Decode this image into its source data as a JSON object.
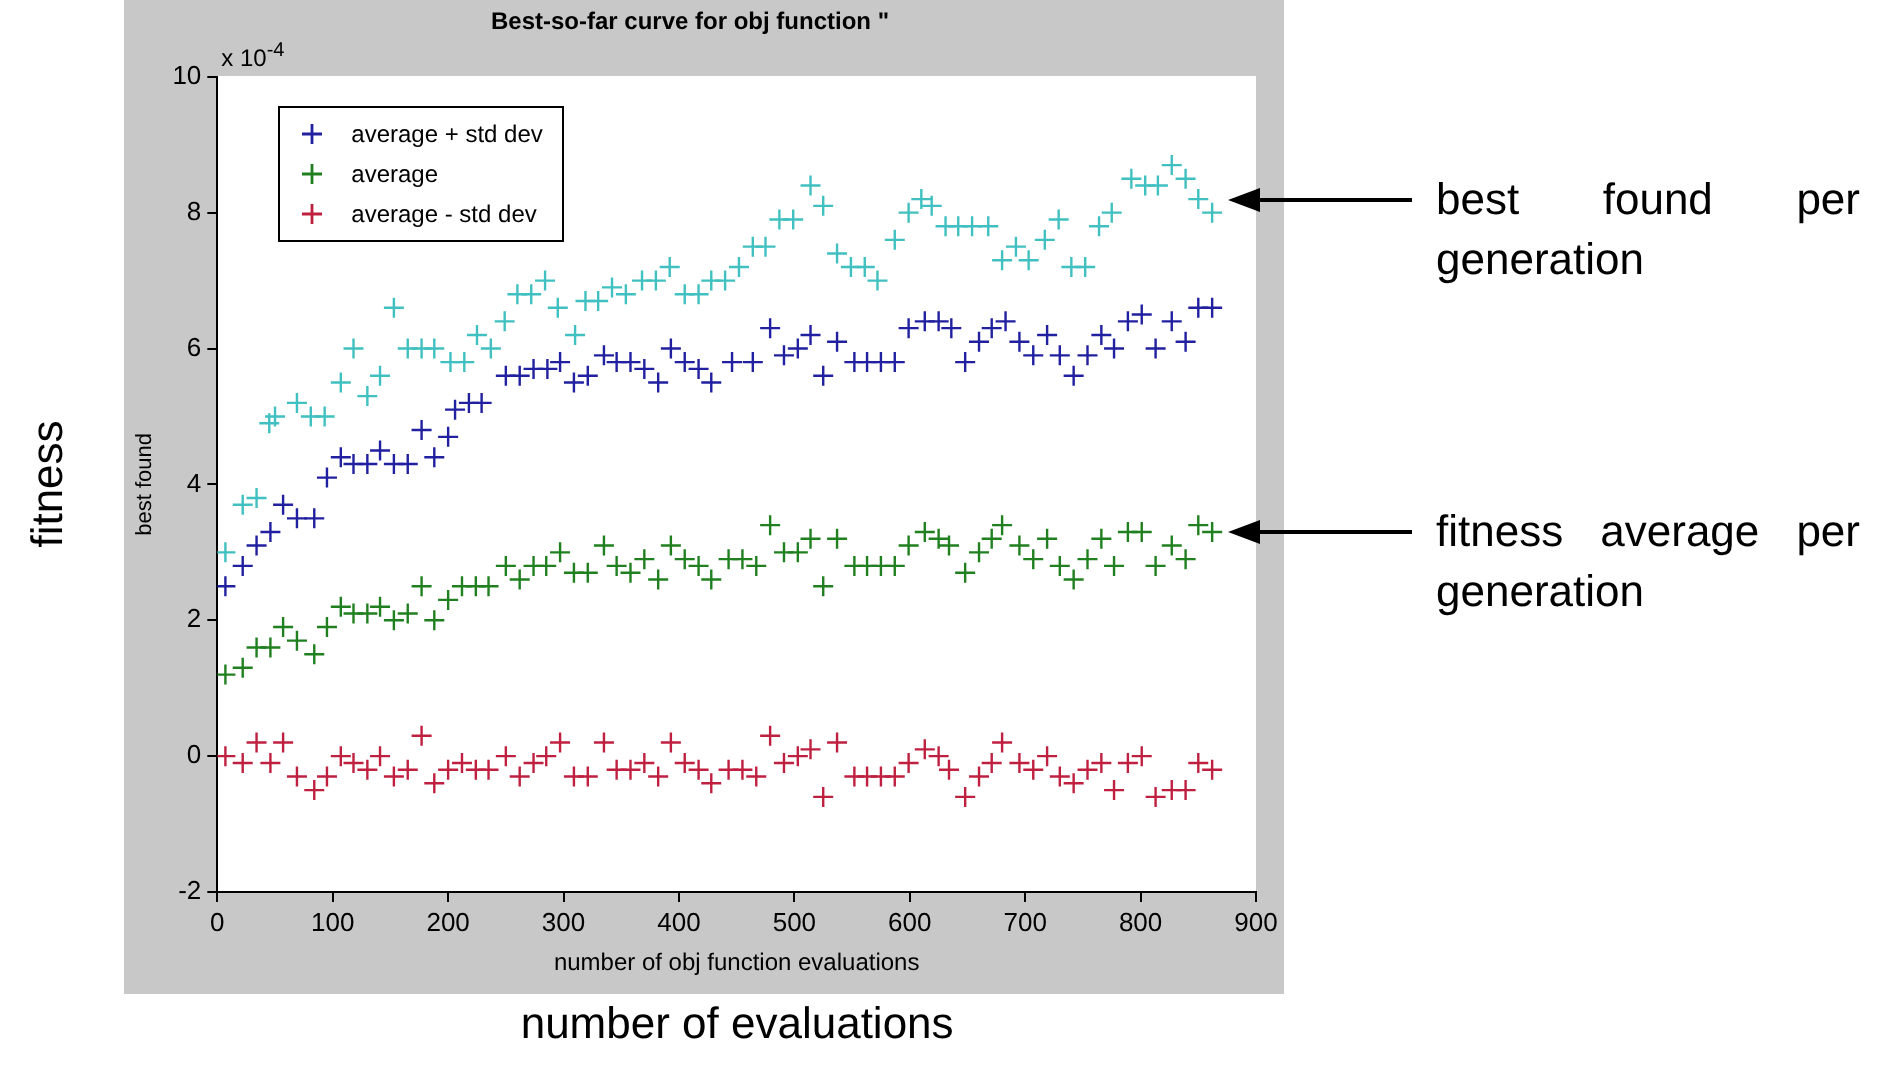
{
  "chart_data": {
    "type": "scatter",
    "title": "Best-so-far curve for obj function \"",
    "xlabel": "number of obj function evaluations",
    "ylabel": "best found",
    "xlim": [
      0,
      900
    ],
    "xticks": [
      0,
      100,
      200,
      300,
      400,
      500,
      600,
      700,
      800,
      900
    ],
    "ylim": [
      -2,
      10
    ],
    "yticks": [
      -2,
      0,
      2,
      4,
      6,
      8,
      10
    ],
    "grid": false,
    "legend": "top left",
    "marker": "cross",
    "annotations": [
      "x 10$^{-4}$",
      "fitness",
      "number of evaluations",
      "best found per generation",
      "fitness average per generation"
    ],
    "series": [
      {
        "color": "#40c0c0",
        "x": [
          7,
          22,
          34,
          45,
          50,
          69,
          81,
          93,
          107,
          118,
          130,
          141,
          153,
          165,
          177,
          188,
          202,
          214,
          225,
          237,
          249,
          260,
          272,
          284,
          295,
          310,
          319,
          330,
          342,
          354,
          368,
          380,
          392,
          405,
          417,
          428,
          440,
          452,
          464,
          475,
          487,
          499,
          514,
          525,
          537,
          549,
          561,
          572,
          587,
          599,
          610,
          619,
          631,
          642,
          654,
          668,
          680,
          692,
          703,
          717,
          729,
          740,
          752,
          764,
          775,
          792,
          804,
          815,
          827,
          839,
          850,
          862
        ],
        "values": [
          3.0,
          3.7,
          3.8,
          4.9,
          5.0,
          5.2,
          5.0,
          5.0,
          5.5,
          6.0,
          5.3,
          5.6,
          6.6,
          6.0,
          6.0,
          6.0,
          5.8,
          5.8,
          6.2,
          6.0,
          6.4,
          6.8,
          6.8,
          7.0,
          6.6,
          6.2,
          6.7,
          6.7,
          6.9,
          6.8,
          7.0,
          7.0,
          7.2,
          6.8,
          6.8,
          7.0,
          7.0,
          7.2,
          7.5,
          7.5,
          7.9,
          7.9,
          8.4,
          8.1,
          7.4,
          7.2,
          7.2,
          7.0,
          7.6,
          8.0,
          8.2,
          8.1,
          7.8,
          7.8,
          7.8,
          7.8,
          7.3,
          7.5,
          7.3,
          7.6,
          7.9,
          7.2,
          7.2,
          7.8,
          8.0,
          8.5,
          8.4,
          8.4,
          8.7,
          8.5,
          8.2,
          8.0
        ]
      },
      {
        "name": "average + std dev",
        "color": "#2020a0",
        "x": [
          7,
          22,
          34,
          46,
          57,
          69,
          84,
          95,
          107,
          118,
          130,
          141,
          153,
          165,
          177,
          188,
          200,
          206,
          218,
          229,
          250,
          262,
          274,
          286,
          297,
          309,
          321,
          335,
          346,
          358,
          370,
          382,
          393,
          405,
          417,
          428,
          446,
          464,
          479,
          491,
          503,
          514,
          525,
          537,
          552,
          563,
          575,
          587,
          599,
          613,
          625,
          636,
          648,
          660,
          671,
          683,
          695,
          707,
          719,
          730,
          742,
          754,
          766,
          777,
          789,
          801,
          813,
          827,
          839,
          850,
          862
        ],
        "values": [
          2.5,
          2.8,
          3.1,
          3.3,
          3.7,
          3.5,
          3.5,
          4.1,
          4.4,
          4.3,
          4.3,
          4.5,
          4.3,
          4.3,
          4.8,
          4.4,
          4.7,
          5.1,
          5.2,
          5.2,
          5.6,
          5.6,
          5.7,
          5.7,
          5.8,
          5.5,
          5.6,
          5.9,
          5.8,
          5.8,
          5.7,
          5.5,
          6.0,
          5.8,
          5.7,
          5.5,
          5.8,
          5.8,
          6.3,
          5.9,
          6.0,
          6.2,
          5.6,
          6.1,
          5.8,
          5.8,
          5.8,
          5.8,
          6.3,
          6.4,
          6.4,
          6.3,
          5.8,
          6.1,
          6.3,
          6.4,
          6.1,
          5.9,
          6.2,
          5.9,
          5.6,
          5.9,
          6.2,
          6.0,
          6.4,
          6.5,
          6.0,
          6.4,
          6.1,
          6.6,
          6.6
        ]
      },
      {
        "name": "average",
        "color": "#208020",
        "x": [
          7,
          22,
          34,
          46,
          57,
          69,
          84,
          95,
          107,
          118,
          130,
          141,
          153,
          165,
          177,
          188,
          200,
          212,
          224,
          235,
          250,
          262,
          274,
          285,
          297,
          309,
          321,
          335,
          346,
          358,
          370,
          382,
          393,
          405,
          417,
          428,
          443,
          455,
          467,
          479,
          491,
          503,
          514,
          525,
          537,
          552,
          563,
          575,
          587,
          599,
          613,
          625,
          634,
          648,
          660,
          671,
          680,
          695,
          707,
          719,
          730,
          742,
          754,
          766,
          777,
          789,
          801,
          813,
          827,
          839,
          850,
          862
        ],
        "values": [
          1.2,
          1.3,
          1.6,
          1.6,
          1.9,
          1.7,
          1.5,
          1.9,
          2.2,
          2.1,
          2.1,
          2.2,
          2.0,
          2.1,
          2.5,
          2.0,
          2.3,
          2.5,
          2.5,
          2.5,
          2.8,
          2.6,
          2.8,
          2.8,
          3.0,
          2.7,
          2.7,
          3.1,
          2.8,
          2.7,
          2.9,
          2.6,
          3.1,
          2.9,
          2.8,
          2.6,
          2.9,
          2.9,
          2.8,
          3.4,
          3.0,
          3.0,
          3.2,
          2.5,
          3.2,
          2.8,
          2.8,
          2.8,
          2.8,
          3.1,
          3.3,
          3.2,
          3.1,
          2.7,
          3.0,
          3.2,
          3.4,
          3.1,
          2.9,
          3.2,
          2.8,
          2.6,
          2.9,
          3.2,
          2.8,
          3.3,
          3.3,
          2.8,
          3.1,
          2.9,
          3.4,
          3.3
        ]
      },
      {
        "name": "average - std dev",
        "color": "#c02040",
        "x": [
          7,
          22,
          34,
          46,
          57,
          69,
          84,
          95,
          107,
          118,
          130,
          141,
          153,
          165,
          177,
          188,
          200,
          212,
          224,
          235,
          250,
          262,
          274,
          285,
          297,
          309,
          321,
          335,
          346,
          358,
          370,
          382,
          393,
          405,
          417,
          428,
          443,
          455,
          467,
          479,
          491,
          503,
          514,
          525,
          537,
          552,
          563,
          575,
          587,
          599,
          613,
          625,
          634,
          648,
          660,
          671,
          680,
          695,
          707,
          719,
          730,
          742,
          754,
          766,
          777,
          789,
          801,
          813,
          827,
          839,
          850,
          862
        ],
        "values": [
          0.0,
          -0.1,
          0.2,
          -0.1,
          0.2,
          -0.3,
          -0.5,
          -0.3,
          0.0,
          -0.1,
          -0.2,
          0.0,
          -0.3,
          -0.2,
          0.3,
          -0.4,
          -0.2,
          -0.1,
          -0.2,
          -0.2,
          0.0,
          -0.3,
          -0.1,
          0.0,
          0.2,
          -0.3,
          -0.3,
          0.2,
          -0.2,
          -0.2,
          -0.1,
          -0.3,
          0.2,
          -0.1,
          -0.2,
          -0.4,
          -0.2,
          -0.2,
          -0.3,
          0.3,
          -0.1,
          0.0,
          0.1,
          -0.6,
          0.2,
          -0.3,
          -0.3,
          -0.3,
          -0.3,
          -0.1,
          0.1,
          0.0,
          -0.2,
          -0.6,
          -0.3,
          -0.1,
          0.2,
          -0.1,
          -0.2,
          0.0,
          -0.3,
          -0.4,
          -0.2,
          -0.1,
          -0.5,
          -0.1,
          0.0,
          -0.6,
          -0.5,
          -0.5,
          -0.1,
          -0.2
        ]
      }
    ]
  }
}
